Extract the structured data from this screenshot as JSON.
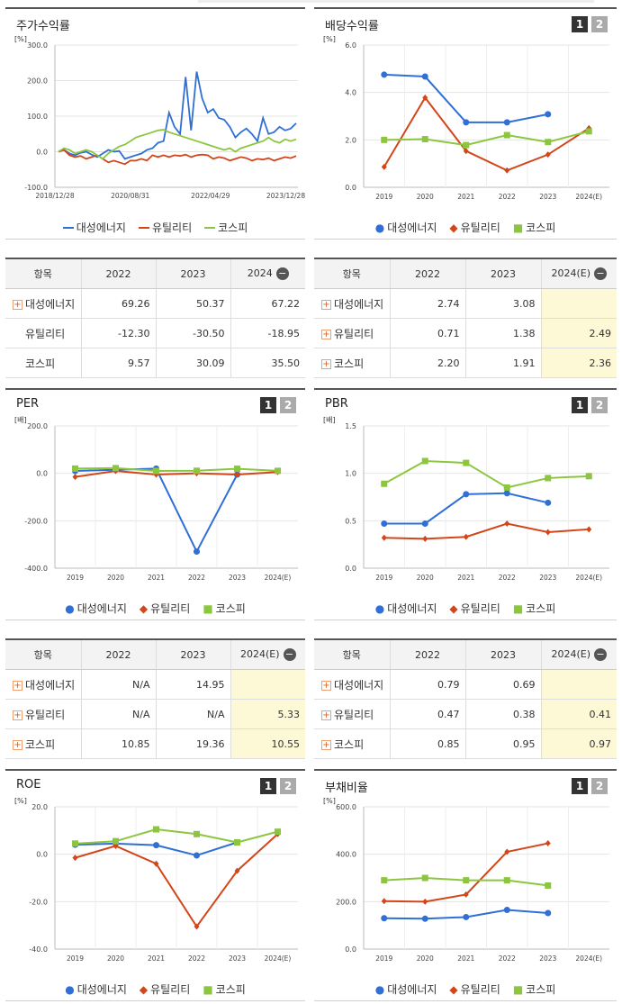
{
  "colors": {
    "s1": "#2f6fd6",
    "s2": "#d2461a",
    "s3": "#8cc63e"
  },
  "legend": [
    "대성에너지",
    "유틸리티",
    "코스피"
  ],
  "panels": {
    "price": {
      "title": "주가수익률"
    },
    "div": {
      "title": "배당수익률",
      "btn1": "1",
      "btn2": "2"
    },
    "per": {
      "title": "PER",
      "btn1": "1",
      "btn2": "2"
    },
    "pbr": {
      "title": "PBR",
      "btn1": "1",
      "btn2": "2"
    },
    "roe": {
      "title": "ROE",
      "btn1": "1",
      "btn2": "2"
    },
    "debt": {
      "title": "부채비율",
      "btn1": "1",
      "btn2": "2"
    }
  },
  "chart_data": [
    {
      "id": "price",
      "type": "line",
      "unit": "[%]",
      "yticks": [
        "300.0",
        "200.0",
        "100.0",
        "0.0",
        "-100.0"
      ],
      "ylim": [
        -100,
        300
      ],
      "xticks": [
        "2018/12/28",
        "2020/08/31",
        "2022/04/29",
        "2023/12/28"
      ],
      "series": [
        {
          "name": "대성에너지",
          "values": [
            0,
            5,
            -5,
            -10,
            -3,
            0,
            -8,
            -15,
            -5,
            5,
            0,
            2,
            -20,
            -15,
            -10,
            -5,
            5,
            10,
            25,
            30,
            110,
            70,
            50,
            210,
            60,
            225,
            150,
            110,
            120,
            95,
            90,
            70,
            40,
            55,
            65,
            50,
            30,
            95,
            50,
            55,
            70,
            60,
            65,
            80
          ]
        },
        {
          "name": "유틸리티",
          "values": [
            0,
            5,
            -10,
            -15,
            -12,
            -20,
            -15,
            -10,
            -20,
            -30,
            -25,
            -30,
            -35,
            -25,
            -25,
            -20,
            -25,
            -10,
            -15,
            -10,
            -15,
            -10,
            -12,
            -8,
            -15,
            -10,
            -8,
            -10,
            -20,
            -15,
            -18,
            -25,
            -20,
            -15,
            -18,
            -25,
            -20,
            -22,
            -18,
            -25,
            -20,
            -15,
            -18,
            -12
          ]
        },
        {
          "name": "코스피",
          "values": [
            0,
            10,
            5,
            -5,
            0,
            5,
            0,
            -10,
            -20,
            -5,
            5,
            15,
            20,
            30,
            40,
            45,
            50,
            55,
            60,
            62,
            55,
            50,
            45,
            40,
            35,
            30,
            25,
            20,
            15,
            10,
            5,
            10,
            0,
            10,
            15,
            20,
            25,
            30,
            40,
            30,
            25,
            35,
            30,
            35
          ]
        }
      ]
    },
    {
      "id": "div",
      "type": "line",
      "unit": "[%]",
      "yticks": [
        "6.0",
        "4.0",
        "2.0",
        "0.0"
      ],
      "ylim": [
        0,
        6
      ],
      "categories": [
        "2019",
        "2020",
        "2021",
        "2022",
        "2023",
        "2024(E)"
      ],
      "series": [
        {
          "name": "대성에너지",
          "values": [
            4.75,
            4.67,
            2.74,
            2.74,
            3.08,
            null
          ]
        },
        {
          "name": "유틸리티",
          "values": [
            0.86,
            3.78,
            1.53,
            0.71,
            1.38,
            2.49
          ]
        },
        {
          "name": "코스피",
          "values": [
            2.0,
            2.03,
            1.78,
            2.2,
            1.91,
            2.36
          ]
        }
      ]
    },
    {
      "id": "per",
      "type": "line",
      "unit": "[배]",
      "yticks": [
        "200.0",
        "0.0",
        "-200.0",
        "-400.0"
      ],
      "ylim": [
        -400,
        200
      ],
      "categories": [
        "2019",
        "2020",
        "2021",
        "2022",
        "2023",
        "2024(E)"
      ],
      "series": [
        {
          "name": "대성에너지",
          "values": [
            10,
            15,
            20,
            -330,
            -5,
            null
          ]
        },
        {
          "name": "유틸리티",
          "values": [
            -15,
            10,
            -5,
            0,
            -5,
            5.33
          ]
        },
        {
          "name": "코스피",
          "values": [
            20,
            22,
            10,
            10.85,
            19.36,
            10.55
          ]
        }
      ]
    },
    {
      "id": "pbr",
      "type": "line",
      "unit": "[배]",
      "yticks": [
        "1.5",
        "1.0",
        "0.5",
        "0.0"
      ],
      "ylim": [
        0,
        1.5
      ],
      "categories": [
        "2019",
        "2020",
        "2021",
        "2022",
        "2023",
        "2024(E)"
      ],
      "series": [
        {
          "name": "대성에너지",
          "values": [
            0.47,
            0.47,
            0.78,
            0.79,
            0.69,
            null
          ]
        },
        {
          "name": "유틸리티",
          "values": [
            0.32,
            0.31,
            0.33,
            0.47,
            0.38,
            0.41
          ]
        },
        {
          "name": "코스피",
          "values": [
            0.89,
            1.13,
            1.11,
            0.85,
            0.95,
            0.97
          ]
        }
      ]
    },
    {
      "id": "roe",
      "type": "line",
      "unit": "[%]",
      "yticks": [
        "20.0",
        "0.0",
        "-20.0",
        "-40.0"
      ],
      "ylim": [
        -40,
        20
      ],
      "categories": [
        "2019",
        "2020",
        "2021",
        "2022",
        "2023",
        "2024(E)"
      ],
      "series": [
        {
          "name": "대성에너지",
          "values": [
            4,
            4.5,
            3.8,
            -0.5,
            5,
            null
          ]
        },
        {
          "name": "유틸리티",
          "values": [
            -1.5,
            3.5,
            -4,
            -30.5,
            -7,
            8.5
          ]
        },
        {
          "name": "코스피",
          "values": [
            4.5,
            5.5,
            10.5,
            8.5,
            5,
            9.5
          ]
        }
      ]
    },
    {
      "id": "debt",
      "type": "line",
      "unit": "[%]",
      "yticks": [
        "600.0",
        "400.0",
        "200.0",
        "0.0"
      ],
      "ylim": [
        0,
        600
      ],
      "categories": [
        "2019",
        "2020",
        "2021",
        "2022",
        "2023",
        "2024(E)"
      ],
      "series": [
        {
          "name": "대성에너지",
          "values": [
            130,
            128,
            135,
            165,
            152,
            null
          ]
        },
        {
          "name": "유틸리티",
          "values": [
            202,
            200,
            230,
            410,
            446,
            null
          ]
        },
        {
          "name": "코스피",
          "values": [
            290,
            300,
            290,
            290,
            268,
            null
          ]
        }
      ]
    }
  ],
  "tables": {
    "price": {
      "cols": [
        "항목",
        "2022",
        "2023",
        "2024"
      ],
      "rows": [
        [
          "대성에너지",
          "69.26",
          "50.37",
          "67.22"
        ],
        [
          "유틸리티",
          "-12.30",
          "-30.50",
          "-18.95"
        ],
        [
          "코스피",
          "9.57",
          "30.09",
          "35.50"
        ]
      ]
    },
    "div": {
      "cols": [
        "항목",
        "2022",
        "2023",
        "2024(E)"
      ],
      "rows": [
        [
          "대성에너지",
          "2.74",
          "3.08",
          ""
        ],
        [
          "유틸리티",
          "0.71",
          "1.38",
          "2.49"
        ],
        [
          "코스피",
          "2.20",
          "1.91",
          "2.36"
        ]
      ]
    },
    "per": {
      "cols": [
        "항목",
        "2022",
        "2023",
        "2024(E)"
      ],
      "rows": [
        [
          "대성에너지",
          "N/A",
          "14.95",
          ""
        ],
        [
          "유틸리티",
          "N/A",
          "N/A",
          "5.33"
        ],
        [
          "코스피",
          "10.85",
          "19.36",
          "10.55"
        ]
      ]
    },
    "pbr": {
      "cols": [
        "항목",
        "2022",
        "2023",
        "2024(E)"
      ],
      "rows": [
        [
          "대성에너지",
          "0.79",
          "0.69",
          ""
        ],
        [
          "유틸리티",
          "0.47",
          "0.38",
          "0.41"
        ],
        [
          "코스피",
          "0.85",
          "0.95",
          "0.97"
        ]
      ]
    }
  },
  "icons": {
    "plus": "+",
    "minus": "−"
  }
}
